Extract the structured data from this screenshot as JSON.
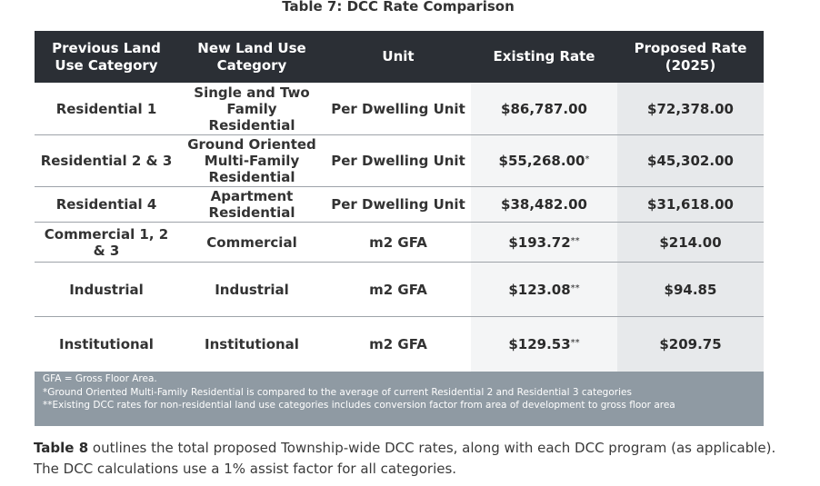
{
  "caption": "Table 7: DCC Rate Comparison",
  "headers": {
    "prev_line1": "Previous Land",
    "prev_line2": "Use Category",
    "new_line1": "New Land Use",
    "new_line2": "Category",
    "unit": "Unit",
    "existing": "Existing Rate",
    "proposed_line1": "Proposed Rate",
    "proposed_line2": "(2025)"
  },
  "rows": [
    {
      "prev": "Residential 1",
      "new": "Single and Two Family Residential",
      "unit": "Per Dwelling Unit",
      "existing": "$86,787.00",
      "existing_mark": "",
      "proposed": "$72,378.00"
    },
    {
      "prev": "Residential 2 & 3",
      "new": "Ground Oriented Multi-Family Residential",
      "unit": "Per Dwelling Unit",
      "existing": "$55,268.00",
      "existing_mark": "*",
      "proposed": "$45,302.00"
    },
    {
      "prev": "Residential 4",
      "new": "Apartment Residential",
      "unit": "Per Dwelling Unit",
      "existing": "$38,482.00",
      "existing_mark": "",
      "proposed": "$31,618.00"
    },
    {
      "prev": "Commercial 1, 2 & 3",
      "new": "Commercial",
      "unit": "m2 GFA",
      "existing": "$193.72",
      "existing_mark": "**",
      "proposed": "$214.00"
    },
    {
      "prev": "Industrial",
      "new": "Industrial",
      "unit": "m2 GFA",
      "existing": "$123.08",
      "existing_mark": "**",
      "proposed": "$94.85"
    },
    {
      "prev": "Institutional",
      "new": "Institutional",
      "unit": "m2 GFA",
      "existing": "$129.53",
      "existing_mark": "**",
      "proposed": "$209.75"
    }
  ],
  "notes": [
    "GFA = Gross Floor Area.",
    "*Ground Oriented Multi-Family Residential is compared to the average of current Residential 2 and Residential 3 categories",
    "**Existing DCC rates for non-residential land use categories includes conversion factor from area of development to gross floor area"
  ],
  "paragraph": {
    "bold": "Table 8",
    "text": " outlines the total proposed Township-wide DCC rates, along with each DCC program (as applicable). The DCC calculations use a 1% assist factor for all categories."
  }
}
